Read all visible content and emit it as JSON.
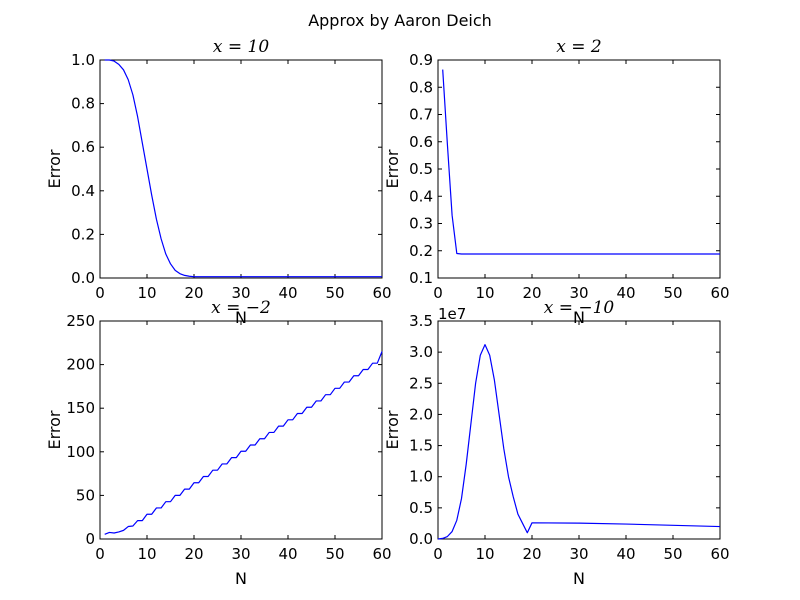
{
  "figure": {
    "suptitle": "Approx by Aaron Deich"
  },
  "chart_data": [
    {
      "type": "line",
      "title": "x = 10",
      "xlabel": "N",
      "ylabel": "Error",
      "xlim": [
        0,
        60
      ],
      "ylim": [
        0,
        1.0
      ],
      "xticks": [
        0,
        10,
        20,
        30,
        40,
        50,
        60
      ],
      "yticks": [
        0.0,
        0.2,
        0.4,
        0.6,
        0.8,
        1.0
      ],
      "ytick_labels": [
        "0.0",
        "0.2",
        "0.4",
        "0.6",
        "0.8",
        "1.0"
      ],
      "offset_text": "",
      "line_color": "#0000ff",
      "series": [
        {
          "x": [
            1,
            2,
            3,
            4,
            5,
            6,
            7,
            8,
            9,
            10,
            11,
            12,
            13,
            14,
            15,
            16,
            17,
            18,
            19,
            20,
            30,
            40,
            50,
            60
          ],
          "y": [
            1.0,
            1.0,
            0.995,
            0.98,
            0.955,
            0.91,
            0.84,
            0.74,
            0.62,
            0.5,
            0.38,
            0.27,
            0.18,
            0.11,
            0.065,
            0.035,
            0.02,
            0.012,
            0.008,
            0.006,
            0.006,
            0.006,
            0.006,
            0.006
          ]
        }
      ]
    },
    {
      "type": "line",
      "title": "x = 2",
      "xlabel": "N",
      "ylabel": "Error",
      "xlim": [
        0,
        60
      ],
      "ylim": [
        0.1,
        0.9
      ],
      "xticks": [
        0,
        10,
        20,
        30,
        40,
        50,
        60
      ],
      "yticks": [
        0.1,
        0.2,
        0.3,
        0.4,
        0.5,
        0.6,
        0.7,
        0.8,
        0.9
      ],
      "ytick_labels": [
        "0.1",
        "0.2",
        "0.3",
        "0.4",
        "0.5",
        "0.6",
        "0.7",
        "0.8",
        "0.9"
      ],
      "offset_text": "",
      "line_color": "#0000ff",
      "series": [
        {
          "x": [
            1,
            2,
            3,
            4,
            5,
            60
          ],
          "y": [
            0.865,
            0.59,
            0.33,
            0.19,
            0.188,
            0.188
          ]
        }
      ]
    },
    {
      "type": "line",
      "title": "x = −2",
      "xlabel": "N",
      "ylabel": "Error",
      "xlim": [
        0,
        60
      ],
      "ylim": [
        0,
        250
      ],
      "xticks": [
        0,
        10,
        20,
        30,
        40,
        50,
        60
      ],
      "yticks": [
        0,
        50,
        100,
        150,
        200,
        250
      ],
      "ytick_labels": [
        "0",
        "50",
        "100",
        "150",
        "200",
        "250"
      ],
      "offset_text": "",
      "line_color": "#0000ff",
      "series": [
        {
          "x": [
            1,
            2,
            3,
            4,
            5,
            6,
            7,
            8,
            9,
            10,
            11,
            12,
            13,
            14,
            15,
            16,
            17,
            18,
            19,
            20,
            21,
            22,
            23,
            24,
            25,
            26,
            27,
            28,
            29,
            30,
            31,
            32,
            33,
            34,
            35,
            36,
            37,
            38,
            39,
            40,
            41,
            42,
            43,
            44,
            45,
            46,
            47,
            48,
            49,
            50,
            51,
            52,
            53,
            54,
            55,
            56,
            57,
            58,
            59,
            60
          ],
          "y": [
            5.4,
            7.5,
            6.9,
            8.1,
            9.9,
            14.3,
            14.9,
            21.1,
            21.1,
            28.4,
            28.4,
            35.6,
            35.6,
            42.8,
            42.8,
            50.0,
            50.0,
            57.2,
            57.2,
            64.5,
            64.5,
            71.7,
            71.7,
            78.9,
            78.9,
            86.1,
            86.1,
            93.3,
            93.3,
            100.6,
            100.6,
            107.8,
            107.8,
            115.0,
            115.0,
            122.2,
            122.2,
            129.4,
            129.4,
            136.7,
            136.7,
            143.9,
            143.9,
            151.1,
            151.1,
            158.3,
            158.3,
            165.5,
            165.5,
            172.8,
            172.8,
            180.0,
            180.0,
            187.2,
            187.2,
            194.4,
            194.4,
            201.6,
            201.6,
            215.0
          ]
        }
      ]
    },
    {
      "type": "line",
      "title": "x = −10",
      "xlabel": "N",
      "ylabel": "Error",
      "xlim": [
        0,
        60
      ],
      "ylim": [
        0,
        3.5
      ],
      "xticks": [
        0,
        10,
        20,
        30,
        40,
        50,
        60
      ],
      "yticks": [
        0.0,
        0.5,
        1.0,
        1.5,
        2.0,
        2.5,
        3.0,
        3.5
      ],
      "ytick_labels": [
        "0.0",
        "0.5",
        "1.0",
        "1.5",
        "2.0",
        "2.5",
        "3.0",
        "3.5"
      ],
      "offset_text": "1e7",
      "line_color": "#0000ff",
      "series": [
        {
          "x": [
            0,
            1,
            2,
            3,
            4,
            5,
            6,
            7,
            8,
            9,
            10,
            11,
            12,
            13,
            14,
            15,
            16,
            17,
            18,
            19,
            20,
            30,
            40,
            50,
            60
          ],
          "y": [
            0.0,
            0.01,
            0.04,
            0.12,
            0.3,
            0.65,
            1.2,
            1.85,
            2.5,
            2.95,
            3.12,
            2.95,
            2.55,
            2.0,
            1.45,
            1.0,
            0.68,
            0.4,
            0.25,
            0.1,
            0.26,
            0.255,
            0.24,
            0.22,
            0.2
          ]
        }
      ]
    }
  ]
}
